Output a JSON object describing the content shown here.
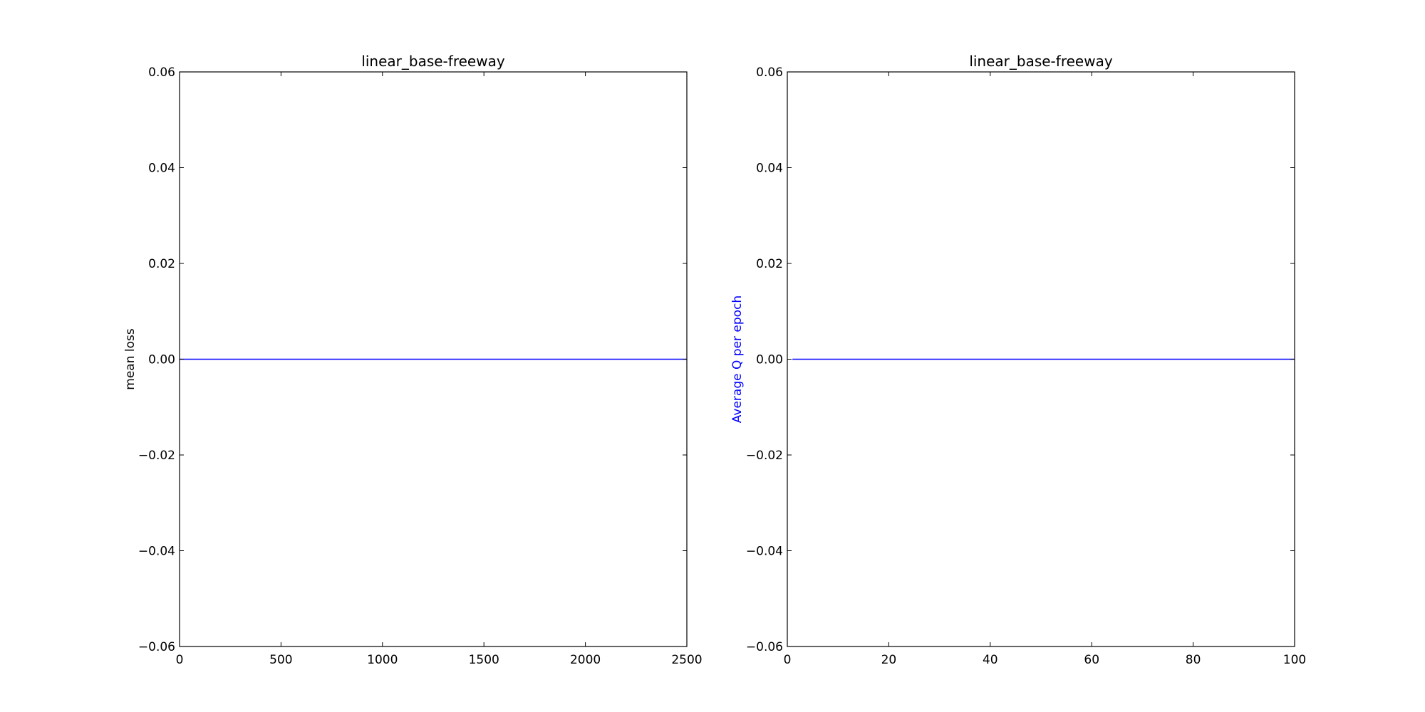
{
  "chart_data": [
    {
      "type": "line",
      "title": "linear_base-freeway",
      "xlabel": "",
      "ylabel": "mean loss",
      "ylabel_color": "#000000",
      "xlim": [
        0,
        2500
      ],
      "ylim": [
        -0.06,
        0.06
      ],
      "x_ticks": [
        0,
        500,
        1000,
        1500,
        2000,
        2500
      ],
      "x_tick_labels": [
        "0",
        "500",
        "1000",
        "1500",
        "2000",
        "2500"
      ],
      "y_ticks": [
        -0.06,
        -0.04,
        -0.02,
        0.0,
        0.02,
        0.04,
        0.06
      ],
      "y_tick_labels": [
        "−0.06",
        "−0.04",
        "−0.02",
        "0.00",
        "0.02",
        "0.04",
        "0.06"
      ],
      "grid": false,
      "series": [
        {
          "color": "#0000ff",
          "x": [
            0,
            2500
          ],
          "y": [
            0,
            0
          ]
        }
      ]
    },
    {
      "type": "line",
      "title": "linear_base-freeway",
      "xlabel": "",
      "ylabel": "Average Q per epoch",
      "ylabel_color": "#0000ff",
      "xlim": [
        0,
        100
      ],
      "ylim": [
        -0.06,
        0.06
      ],
      "x_ticks": [
        0,
        20,
        40,
        60,
        80,
        100
      ],
      "x_tick_labels": [
        "0",
        "20",
        "40",
        "60",
        "80",
        "100"
      ],
      "y_ticks": [
        -0.06,
        -0.04,
        -0.02,
        0.0,
        0.02,
        0.04,
        0.06
      ],
      "y_tick_labels": [
        "−0.06",
        "−0.04",
        "−0.02",
        "0.00",
        "0.02",
        "0.04",
        "0.06"
      ],
      "grid": false,
      "series": [
        {
          "color": "#0000ff",
          "x": [
            1,
            100
          ],
          "y": [
            0,
            0
          ]
        }
      ]
    }
  ]
}
